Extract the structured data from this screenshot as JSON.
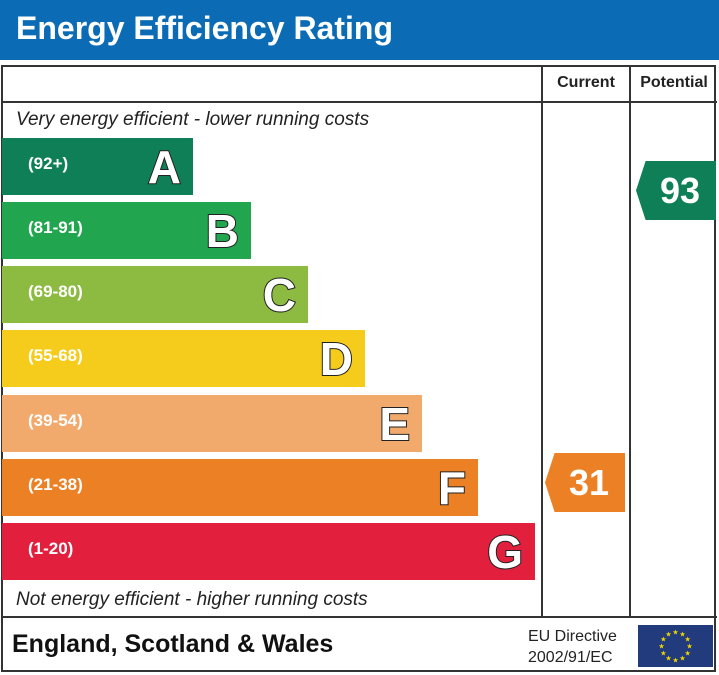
{
  "header": {
    "title": "Energy Efficiency Rating"
  },
  "columns": {
    "current": "Current",
    "potential": "Potential"
  },
  "notes": {
    "top": "Very energy efficient - lower running costs",
    "bottom": "Not energy efficient - higher running costs"
  },
  "chart_data": {
    "type": "bar",
    "categories": [
      "A",
      "B",
      "C",
      "D",
      "E",
      "F",
      "G"
    ],
    "bands": [
      {
        "letter": "A",
        "range": "(92+)",
        "color": "#0f7f57"
      },
      {
        "letter": "B",
        "range": "(81-91)",
        "color": "#21a64f"
      },
      {
        "letter": "C",
        "range": "(69-80)",
        "color": "#8dbb41"
      },
      {
        "letter": "D",
        "range": "(55-68)",
        "color": "#f5cc1b"
      },
      {
        "letter": "E",
        "range": "(39-54)",
        "color": "#f2a96c"
      },
      {
        "letter": "F",
        "range": "(21-38)",
        "color": "#ec8025"
      },
      {
        "letter": "G",
        "range": "(1-20)",
        "color": "#e2203d"
      }
    ],
    "current": {
      "value": "31",
      "band": "F",
      "color": "#ec8025"
    },
    "potential": {
      "value": "93",
      "band": "A",
      "color": "#0f7f57"
    }
  },
  "footer": {
    "region": "England, Scotland & Wales",
    "directive_line1": "EU Directive",
    "directive_line2": "2002/91/EC"
  }
}
